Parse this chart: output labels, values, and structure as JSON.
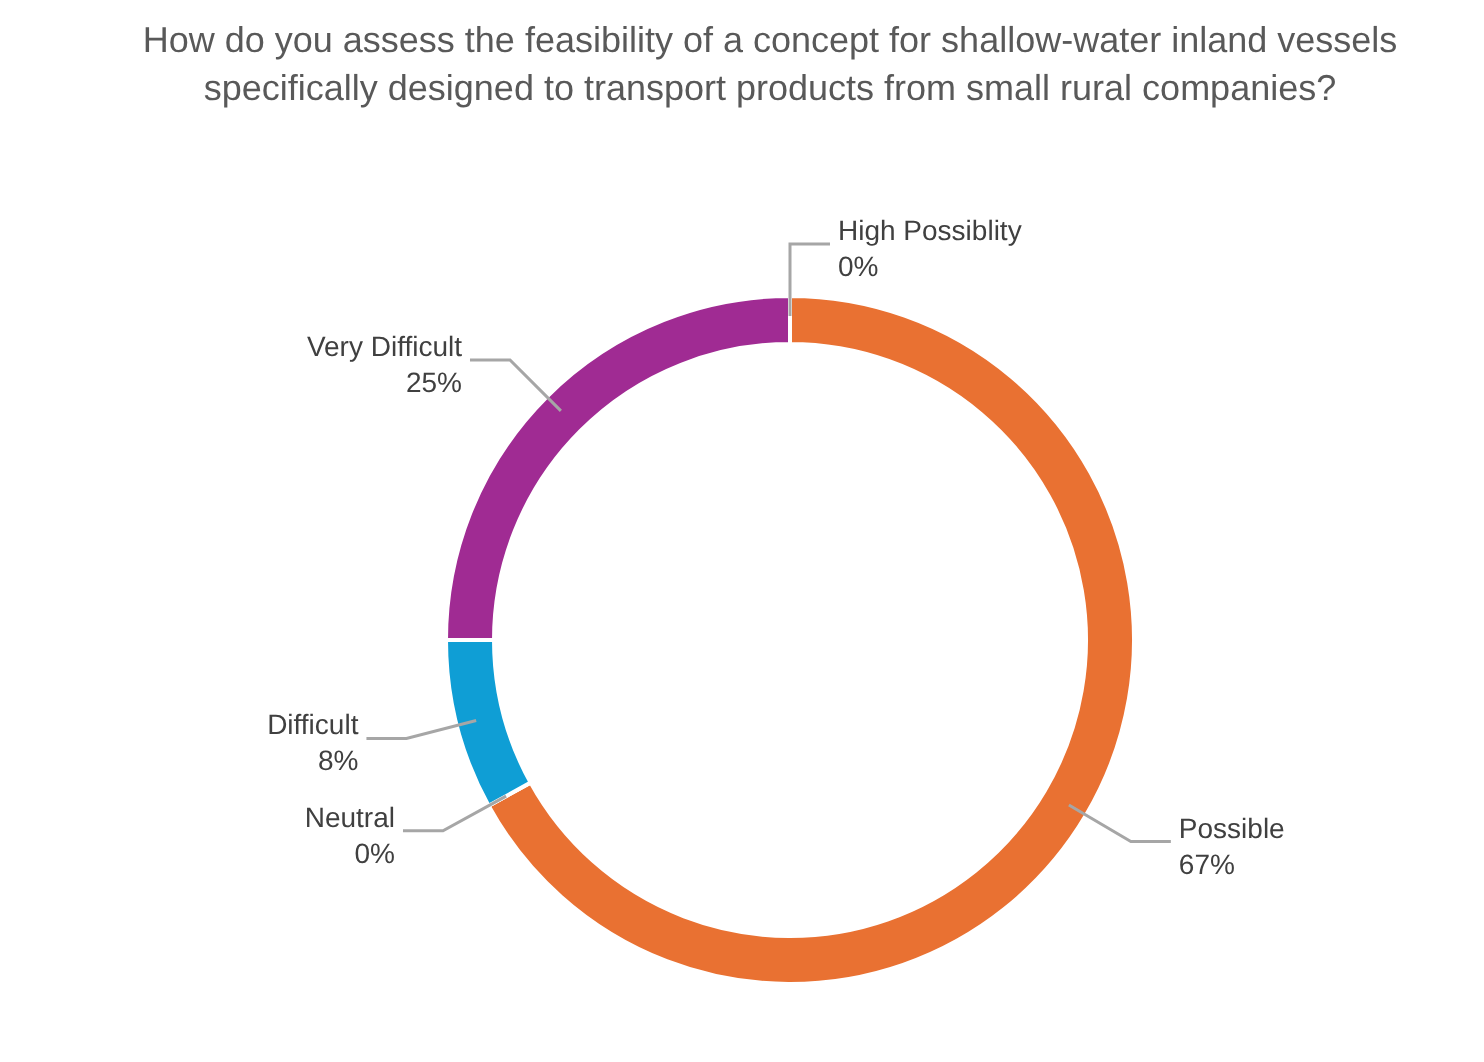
{
  "chart_data": {
    "type": "donut",
    "title": "How do you assess the feasibility of a concept for shallow-water inland vessels specifically designed to transport products from small rural companies?",
    "categories": [
      "High Possiblity",
      "Possible",
      "Neutral",
      "Difficult",
      "Very Difficult"
    ],
    "values": [
      0,
      67,
      0,
      8,
      25
    ],
    "value_labels": [
      "0%",
      "67%",
      "0%",
      "8%",
      "25%"
    ],
    "colors": [
      "#156082",
      "#e97132",
      "#196b24",
      "#0f9ed5",
      "#a02b93"
    ]
  }
}
